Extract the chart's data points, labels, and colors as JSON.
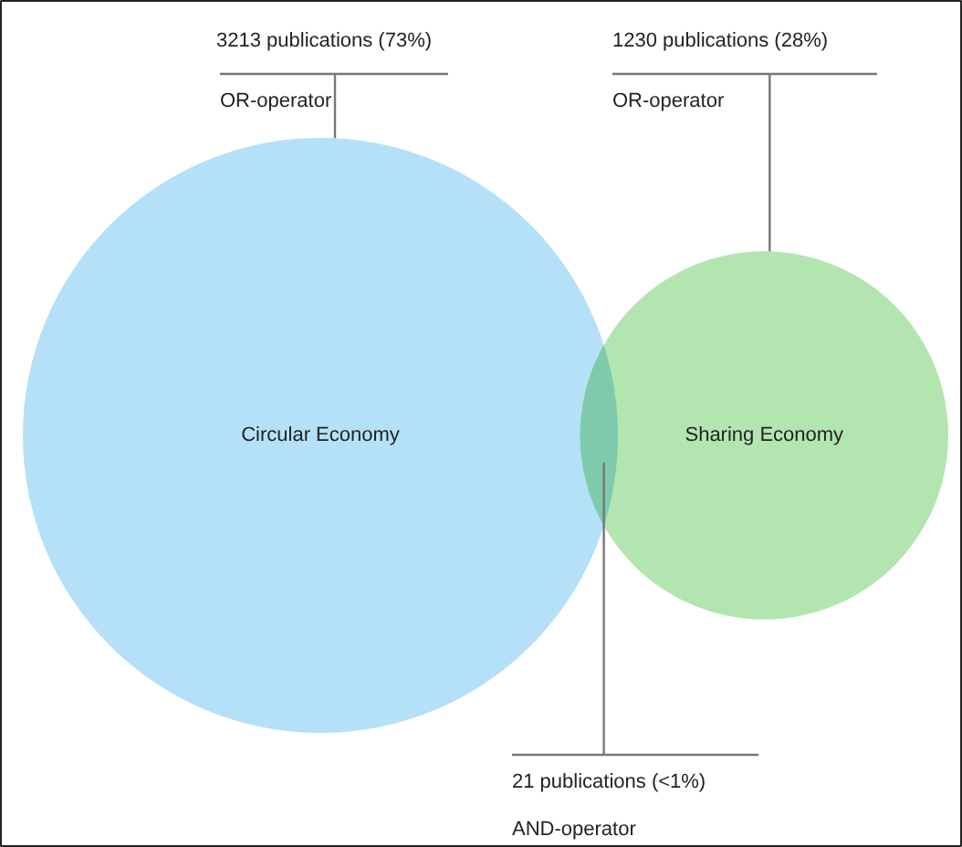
{
  "chart_data": {
    "type": "other",
    "categories": [
      "Circular Economy",
      "Sharing Economy"
    ],
    "values": [
      3213,
      1230
    ],
    "value_labels": [
      "3213 publications (73%)",
      "1230 publications (28%)"
    ],
    "colors": [
      "#b5e1f8",
      "#b3e5b1"
    ],
    "annotations": [
      "OR-operator",
      "OR-operator",
      "21 publications (<1%)",
      "AND-operator"
    ]
  }
}
